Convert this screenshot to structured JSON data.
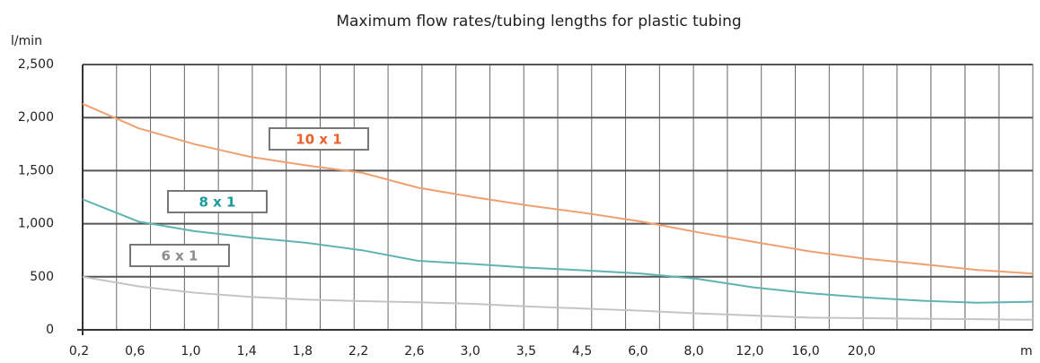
{
  "chart_data": {
    "type": "line",
    "title": "Maximum flow rates/tubing lengths for plastic tubing",
    "y_label": "l/min",
    "x_label": "m",
    "categories": [
      "0,2",
      "0,6",
      "1,0",
      "1,4",
      "1,8",
      "2,2",
      "2,6",
      "3,0",
      "3,5",
      "4,5",
      "6,0",
      "8,0",
      "12,0",
      "16,0",
      "20,0",
      null,
      null,
      null
    ],
    "series": [
      {
        "name": "10 x 1",
        "color": "#f0a070",
        "label_color": "#e8602c",
        "values": [
          2130,
          1900,
          1750,
          1630,
          1550,
          1480,
          1340,
          1250,
          1170,
          1100,
          1020,
          920,
          830,
          740,
          670,
          620,
          565,
          530
        ]
      },
      {
        "name": "8 x 1",
        "color": "#5fb3b3",
        "label_color": "#1a9a9a",
        "values": [
          1230,
          1020,
          930,
          870,
          820,
          750,
          650,
          620,
          585,
          560,
          530,
          480,
          400,
          345,
          305,
          275,
          255,
          265
        ]
      },
      {
        "name": "6 x 1",
        "color": "#c4c4c4",
        "label_color": "#8c8c8c",
        "values": [
          500,
          410,
          350,
          310,
          285,
          270,
          260,
          245,
          220,
          200,
          180,
          155,
          135,
          115,
          110,
          105,
          100,
          95
        ]
      }
    ],
    "ylim": [
      0,
      2500
    ],
    "yticks": [
      0,
      500,
      {
        "value": 1000,
        "label": "1,000"
      },
      {
        "value": 1500,
        "label": "1,500"
      },
      {
        "value": 2000,
        "label": "2,000"
      },
      {
        "value": 2500,
        "label": "2,500"
      }
    ],
    "grid": true
  }
}
